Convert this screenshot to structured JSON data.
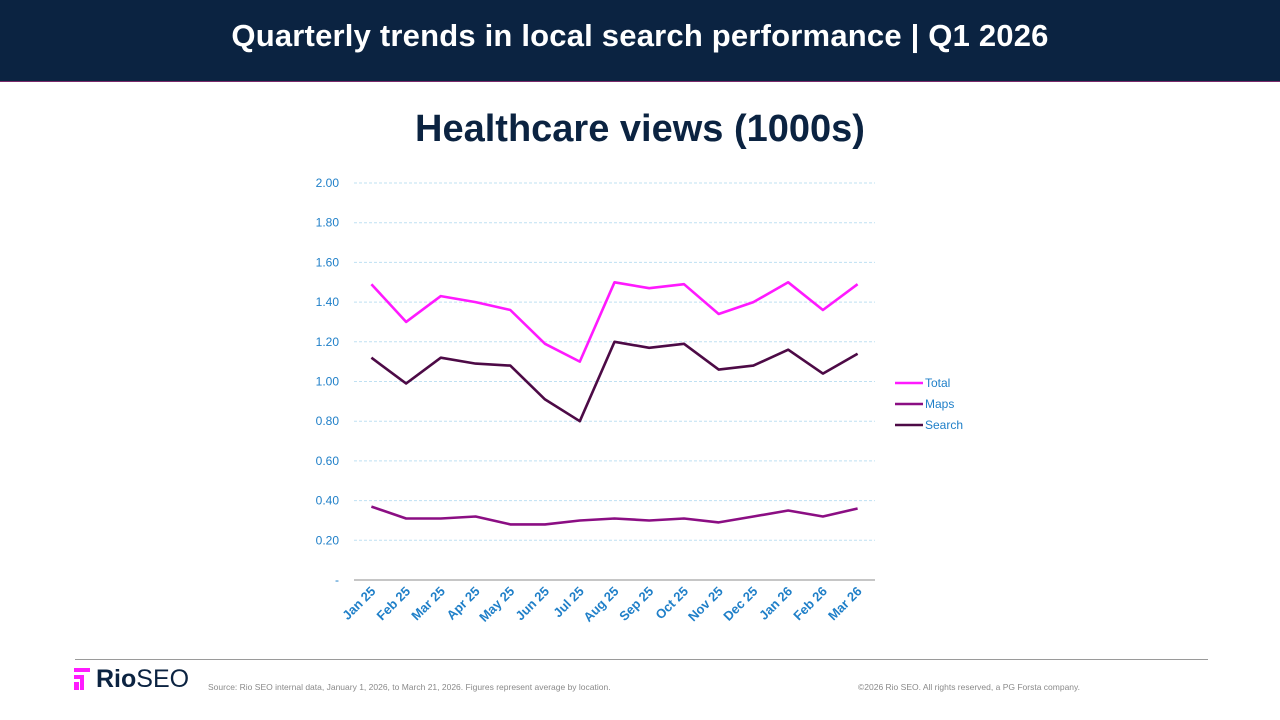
{
  "header": {
    "title": "Quarterly trends in local search performance | Q1 2026"
  },
  "chart_data": {
    "type": "line",
    "title": "Healthcare views (1000s)",
    "xlabel": "",
    "ylabel": "",
    "ylim": [
      0,
      2
    ],
    "grid": true,
    "legend_position": "right",
    "y_ticks": [
      "-",
      "0.20",
      "0.40",
      "0.60",
      "0.80",
      "1.00",
      "1.20",
      "1.40",
      "1.60",
      "1.80",
      "2.00"
    ],
    "categories": [
      "Jan 25",
      "Feb 25",
      "Mar 25",
      "Apr 25",
      "May 25",
      "Jun 25",
      "Jul 25",
      "Aug 25",
      "Sep 25",
      "Oct 25",
      "Nov 25",
      "Dec 25",
      "Jan 26",
      "Feb 26",
      "Mar 26"
    ],
    "series": [
      {
        "name": "Total",
        "color": "#ff1aff",
        "values": [
          1.49,
          1.3,
          1.43,
          1.4,
          1.36,
          1.19,
          1.1,
          1.5,
          1.47,
          1.49,
          1.34,
          1.4,
          1.5,
          1.36,
          1.49
        ]
      },
      {
        "name": "Maps",
        "color": "#8b0e83",
        "values": [
          0.37,
          0.31,
          0.31,
          0.32,
          0.28,
          0.28,
          0.3,
          0.31,
          0.3,
          0.31,
          0.29,
          0.32,
          0.35,
          0.32,
          0.36
        ]
      },
      {
        "name": "Search",
        "color": "#4d0a46",
        "values": [
          1.12,
          0.99,
          1.12,
          1.09,
          1.08,
          0.91,
          0.8,
          1.2,
          1.17,
          1.19,
          1.06,
          1.08,
          1.16,
          1.04,
          1.14
        ]
      }
    ]
  },
  "footer": {
    "logo_brand": "Rio",
    "logo_suffix": "SEO",
    "source": "Source: Rio SEO internal data, January 1, 2026, to March 21, 2026. Figures represent average by location.",
    "copyright": "©2026 Rio SEO. All rights reserved, a PG Forsta company."
  },
  "colors": {
    "header_bg": "#0b2341",
    "accent_magenta": "#ff1aff",
    "tick_blue": "#1f7fc8",
    "gridline": "#bfe0f2"
  }
}
